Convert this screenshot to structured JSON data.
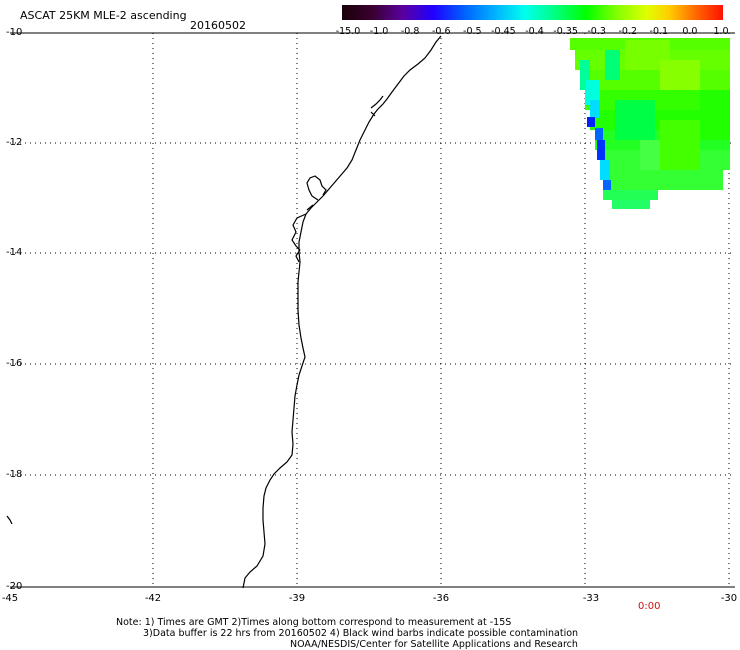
{
  "header": {
    "title": "ASCAT 25KM MLE-2 ascending",
    "date": "20160502"
  },
  "colorbar": {
    "colors": [
      "#2b0010",
      "#5a0080",
      "#2a00ff",
      "#0055ff",
      "#00aaff",
      "#00ffff",
      "#00ff99",
      "#00ff00",
      "#66ff00",
      "#ccff00",
      "#ffff00",
      "#ff9900",
      "#ff2200"
    ],
    "labels": [
      "-15.0",
      "-1.0",
      "-0.8",
      "-0.6",
      "-0.5",
      "-0.45",
      "-0.4",
      "-0.35",
      "-0.3",
      "-0.2",
      "-0.1",
      "0.0",
      "1.0"
    ]
  },
  "axes": {
    "lat_ticks": [
      "-10",
      "-12",
      "-14",
      "-16",
      "-18",
      "-20"
    ],
    "lon_ticks": [
      "-45",
      "-42",
      "-39",
      "-36",
      "-33",
      "-30"
    ],
    "lat_range": [
      -20,
      -10
    ],
    "lon_range": [
      -45,
      -30
    ]
  },
  "time_label": "0:00",
  "notes": {
    "line1": "Note: 1) Times are GMT 2)Times along bottom correspond to measurement at -15S",
    "line2": "3)Data buffer is 22 hrs from 20160502 4) Black wind barbs indicate possible contamination",
    "line3": "NOAA/NESDIS/Center for Satellite Applications and Research"
  },
  "colors": {
    "coastline": "#000000",
    "grid": "#000000",
    "time_label": "#d01010"
  }
}
